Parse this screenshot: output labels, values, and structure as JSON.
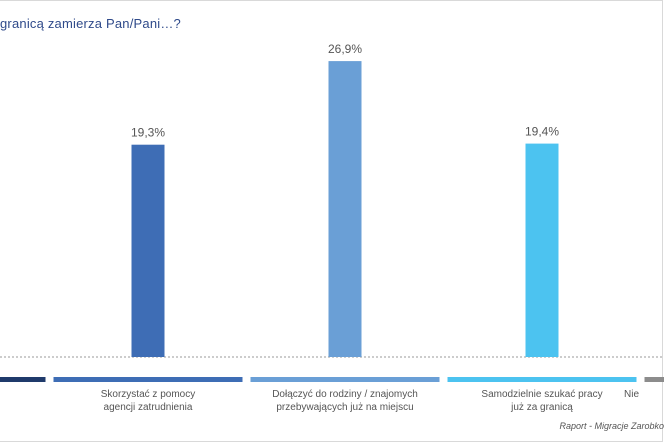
{
  "title": "granicą zamierza Pan/Pani…?",
  "source": "Raport - Migracje Zarobko",
  "colors": {
    "baseline": "#999999"
  },
  "chart_data": {
    "type": "bar",
    "title": "granicą zamierza Pan/Pani…?",
    "xlabel": "",
    "ylabel": "",
    "grid": false,
    "legend": "bottom",
    "ylim": [
      0,
      30
    ],
    "categories": [
      "",
      "Skorzystać z pomocy agencji zatrudnienia",
      "Dołączyć do rodziny / znajomych przebywających już na miejscu",
      "Samodzielnie szukać pracy już za granicą",
      "Nie"
    ],
    "label_lines": [
      [
        ""
      ],
      [
        "Skorzystać z pomocy",
        "agencji zatrudnienia"
      ],
      [
        "Dołączyć do rodziny / znajomych",
        "przebywających już na miejscu"
      ],
      [
        "Samodzielnie szukać pracy",
        "już za granicą"
      ],
      [
        "Nie"
      ]
    ],
    "values": [
      null,
      19.3,
      26.9,
      19.4,
      null
    ],
    "value_labels": [
      "",
      "19,3%",
      "26,9%",
      "19,4%",
      ""
    ],
    "colors": [
      "#1f3a6b",
      "#3e6db5",
      "#6a9fd6",
      "#4cc3f0",
      "#8c8c8c"
    ]
  }
}
